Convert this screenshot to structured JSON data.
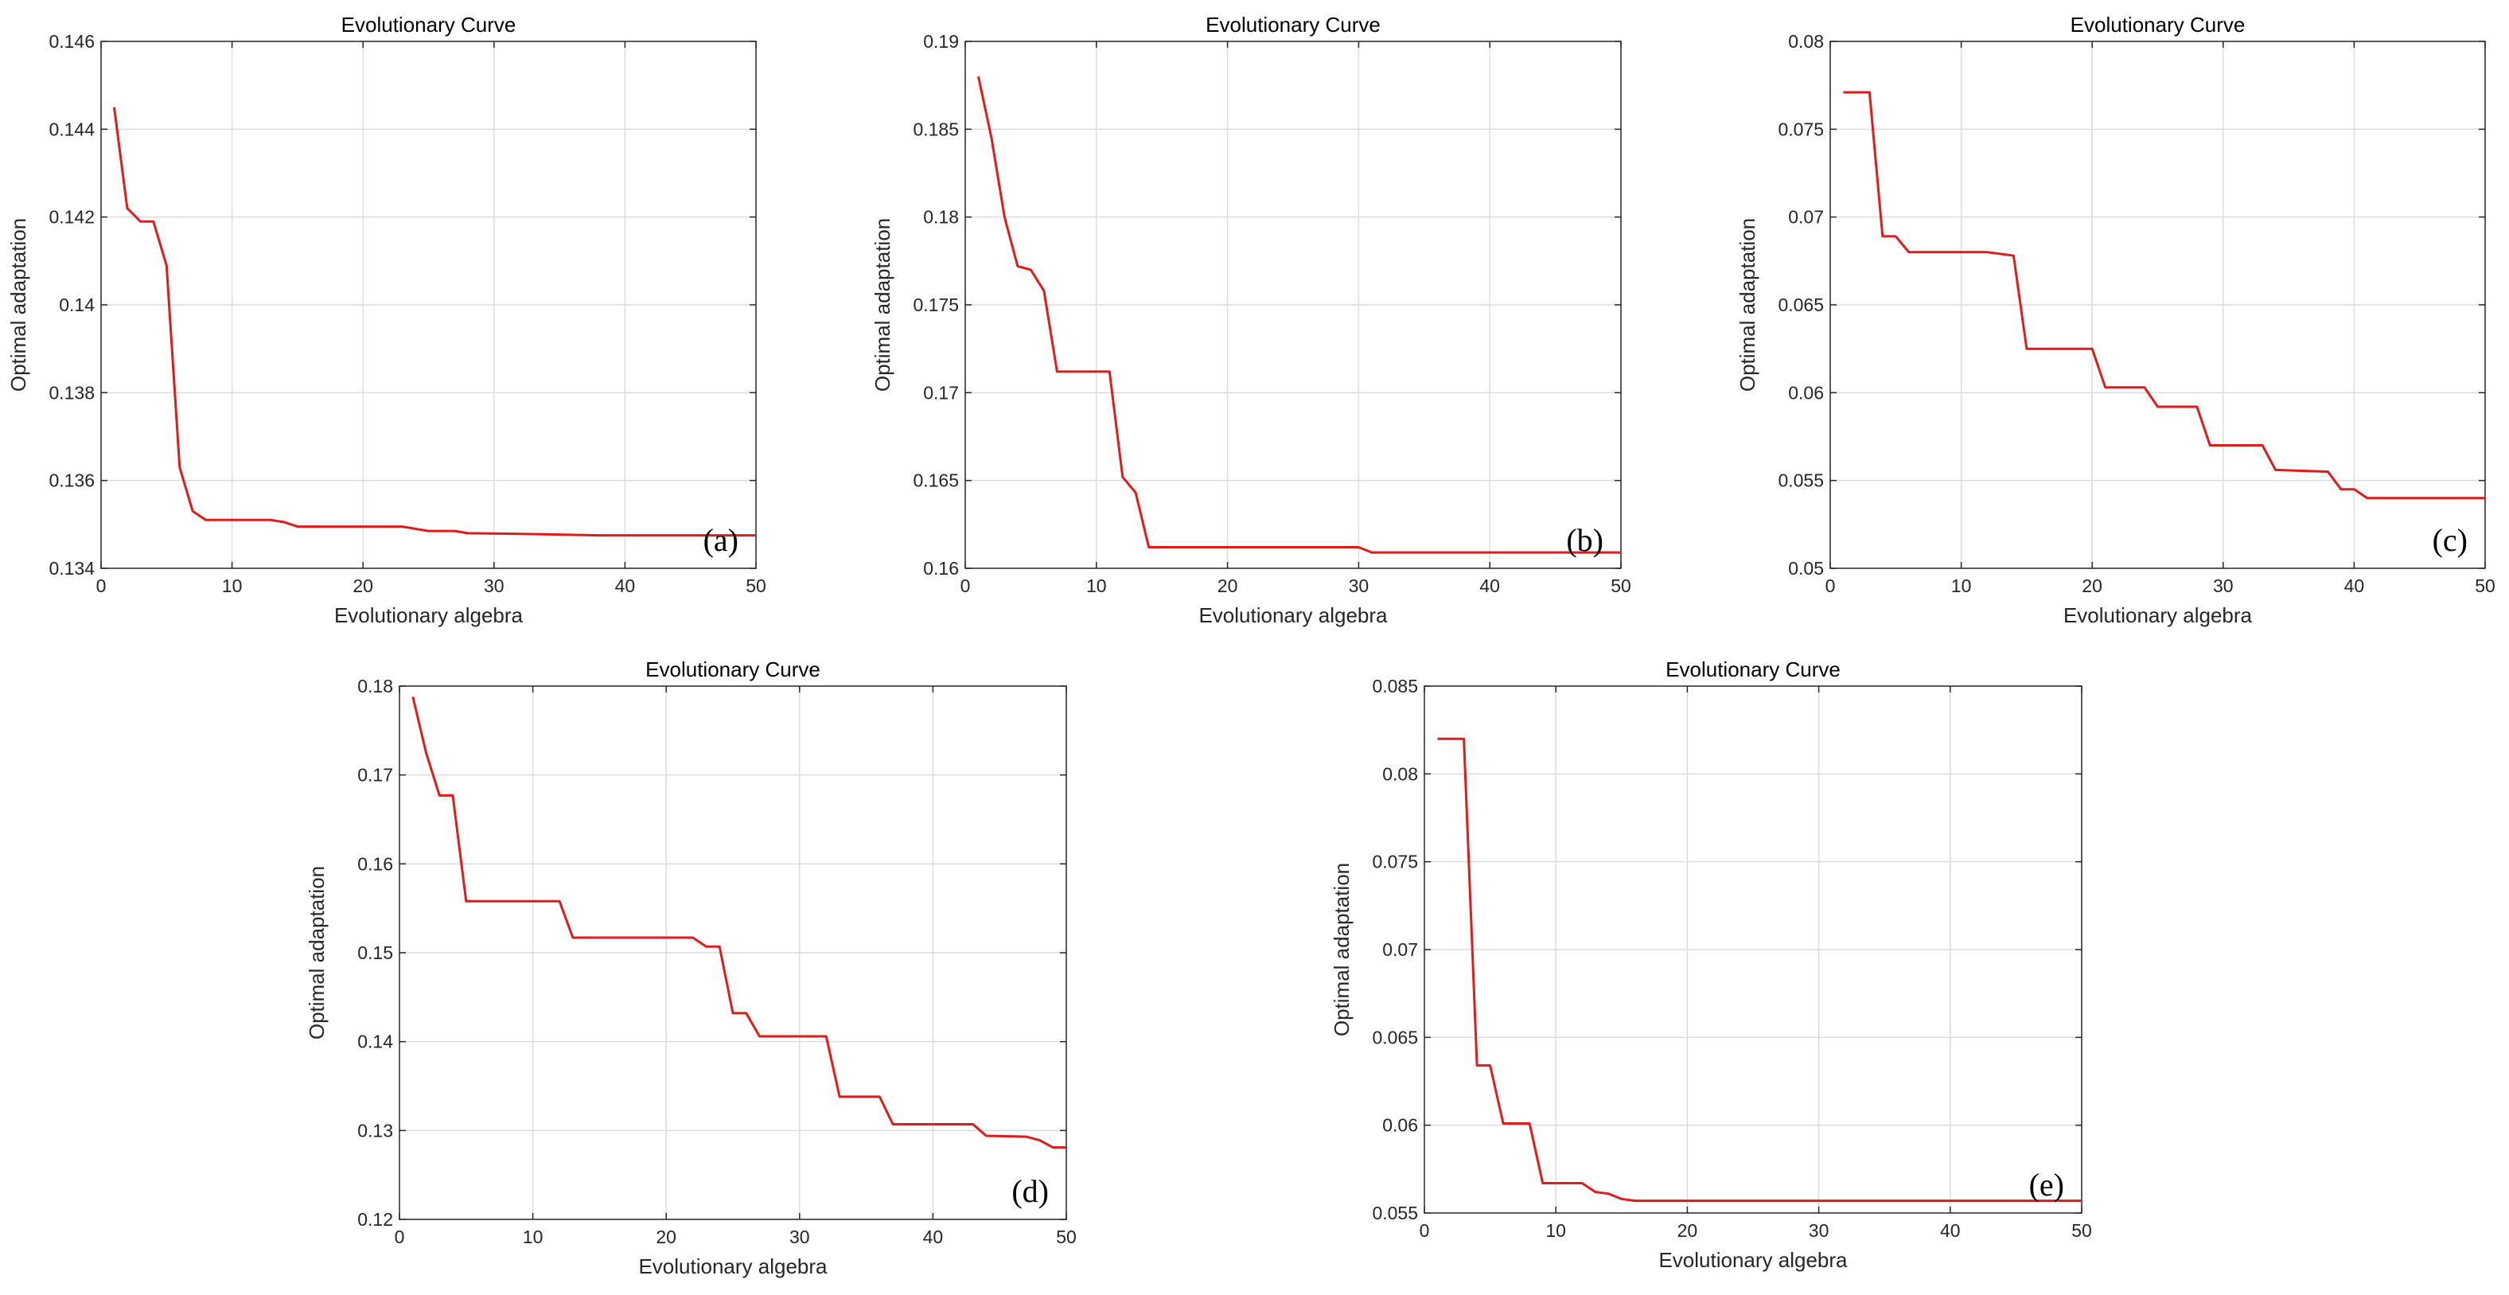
{
  "chart_data": [
    {
      "id": "a",
      "type": "line",
      "title": "Evolutionary Curve",
      "xlabel": "Evolutionary algebra",
      "ylabel": "Optimal adaptation",
      "panel_label": "(a)",
      "xlim": [
        0,
        50
      ],
      "ylim": [
        0.134,
        0.146
      ],
      "xticks": [
        0,
        10,
        20,
        30,
        40,
        50
      ],
      "xtick_labels": [
        "0",
        "10",
        "20",
        "30",
        "40",
        "50"
      ],
      "yticks": [
        0.134,
        0.136,
        0.138,
        0.14,
        0.142,
        0.144,
        0.146
      ],
      "ytick_labels": [
        "0.134",
        "0.136",
        "0.138",
        "0.14",
        "0.142",
        "0.144",
        "0.146"
      ],
      "grid": true,
      "color": "#e11a1a",
      "series": [
        {
          "name": "Optimal adaptation",
          "x": [
            1,
            2,
            3,
            4,
            5,
            6,
            7,
            8,
            13,
            14,
            15,
            23,
            24,
            25,
            27,
            28,
            33,
            38,
            50
          ],
          "y": [
            0.1445,
            0.1422,
            0.1419,
            0.1419,
            0.1409,
            0.1363,
            0.1353,
            0.1351,
            0.1351,
            0.13505,
            0.13495,
            0.13495,
            0.1349,
            0.13485,
            0.13485,
            0.1348,
            0.13478,
            0.13475,
            0.13475
          ]
        }
      ]
    },
    {
      "id": "b",
      "type": "line",
      "title": "Evolutionary Curve",
      "xlabel": "Evolutionary algebra",
      "ylabel": "Optimal adaptation",
      "panel_label": "(b)",
      "xlim": [
        0,
        50
      ],
      "ylim": [
        0.16,
        0.19
      ],
      "xticks": [
        0,
        10,
        20,
        30,
        40,
        50
      ],
      "xtick_labels": [
        "0",
        "10",
        "20",
        "30",
        "40",
        "50"
      ],
      "yticks": [
        0.16,
        0.165,
        0.17,
        0.175,
        0.18,
        0.185,
        0.19
      ],
      "ytick_labels": [
        "0.16",
        "0.165",
        "0.17",
        "0.175",
        "0.18",
        "0.185",
        "0.19"
      ],
      "grid": true,
      "color": "#e11a1a",
      "series": [
        {
          "name": "Optimal adaptation",
          "x": [
            1,
            2,
            3,
            4,
            5,
            6,
            7,
            11,
            12,
            13,
            14,
            30,
            31,
            50
          ],
          "y": [
            0.188,
            0.1845,
            0.18,
            0.1772,
            0.177,
            0.1758,
            0.1712,
            0.1712,
            0.1652,
            0.1643,
            0.1612,
            0.1612,
            0.1609,
            0.1609
          ]
        }
      ]
    },
    {
      "id": "c",
      "type": "line",
      "title": "Evolutionary Curve",
      "xlabel": "Evolutionary algebra",
      "ylabel": "Optimal adaptation",
      "panel_label": "(c)",
      "xlim": [
        0,
        50
      ],
      "ylim": [
        0.05,
        0.08
      ],
      "xticks": [
        0,
        10,
        20,
        30,
        40,
        50
      ],
      "xtick_labels": [
        "0",
        "10",
        "20",
        "30",
        "40",
        "50"
      ],
      "yticks": [
        0.05,
        0.055,
        0.06,
        0.065,
        0.07,
        0.075,
        0.08
      ],
      "ytick_labels": [
        "0.05",
        "0.055",
        "0.06",
        "0.065",
        "0.07",
        "0.075",
        "0.08"
      ],
      "grid": true,
      "color": "#e11a1a",
      "series": [
        {
          "name": "Optimal adaptation",
          "x": [
            1,
            3,
            4,
            5,
            6,
            12,
            14,
            15,
            20,
            21,
            24,
            25,
            28,
            29,
            33,
            34,
            38,
            39,
            40,
            41,
            50
          ],
          "y": [
            0.0771,
            0.0771,
            0.0689,
            0.0689,
            0.068,
            0.068,
            0.0678,
            0.0625,
            0.0625,
            0.0603,
            0.0603,
            0.0592,
            0.0592,
            0.057,
            0.057,
            0.0556,
            0.0555,
            0.0545,
            0.0545,
            0.054,
            0.054
          ]
        }
      ]
    },
    {
      "id": "d",
      "type": "line",
      "title": "Evolutionary Curve",
      "xlabel": "Evolutionary algebra",
      "ylabel": "Optimal adaptation",
      "panel_label": "(d)",
      "xlim": [
        0,
        50
      ],
      "ylim": [
        0.12,
        0.18
      ],
      "xticks": [
        0,
        10,
        20,
        30,
        40,
        50
      ],
      "xtick_labels": [
        "0",
        "10",
        "20",
        "30",
        "40",
        "50"
      ],
      "yticks": [
        0.12,
        0.13,
        0.14,
        0.15,
        0.16,
        0.17,
        0.18
      ],
      "ytick_labels": [
        "0.12",
        "0.13",
        "0.14",
        "0.15",
        "0.16",
        "0.17",
        "0.18"
      ],
      "grid": true,
      "color": "#e11a1a",
      "series": [
        {
          "name": "Optimal adaptation",
          "x": [
            1,
            2,
            3,
            4,
            5,
            12,
            13,
            22,
            23,
            24,
            25,
            26,
            27,
            32,
            33,
            36,
            37,
            43,
            44,
            47,
            48,
            49,
            50
          ],
          "y": [
            0.1788,
            0.1725,
            0.1677,
            0.1677,
            0.1558,
            0.1558,
            0.1517,
            0.1517,
            0.1507,
            0.1507,
            0.1432,
            0.1432,
            0.1406,
            0.1406,
            0.1338,
            0.1338,
            0.1307,
            0.1307,
            0.1294,
            0.1293,
            0.1289,
            0.1281,
            0.1281
          ]
        }
      ]
    },
    {
      "id": "e",
      "type": "line",
      "title": "Evolutionary Curve",
      "xlabel": "Evolutionary algebra",
      "ylabel": "Optimal adaptation",
      "panel_label": "(e)",
      "xlim": [
        0,
        50
      ],
      "ylim": [
        0.055,
        0.085
      ],
      "xticks": [
        0,
        10,
        20,
        30,
        40,
        50
      ],
      "xtick_labels": [
        "0",
        "10",
        "20",
        "30",
        "40",
        "50"
      ],
      "yticks": [
        0.055,
        0.06,
        0.065,
        0.07,
        0.075,
        0.08,
        0.085
      ],
      "ytick_labels": [
        "0.055",
        "0.06",
        "0.065",
        "0.07",
        "0.075",
        "0.08",
        "0.085"
      ],
      "grid": true,
      "color": "#e11a1a",
      "series": [
        {
          "name": "Optimal adaptation",
          "x": [
            1,
            3,
            4,
            5,
            6,
            8,
            9,
            12,
            13,
            14,
            15,
            16,
            50
          ],
          "y": [
            0.082,
            0.082,
            0.0634,
            0.0634,
            0.0601,
            0.0601,
            0.0567,
            0.0567,
            0.0562,
            0.0561,
            0.0558,
            0.0557,
            0.0557
          ]
        }
      ]
    }
  ]
}
